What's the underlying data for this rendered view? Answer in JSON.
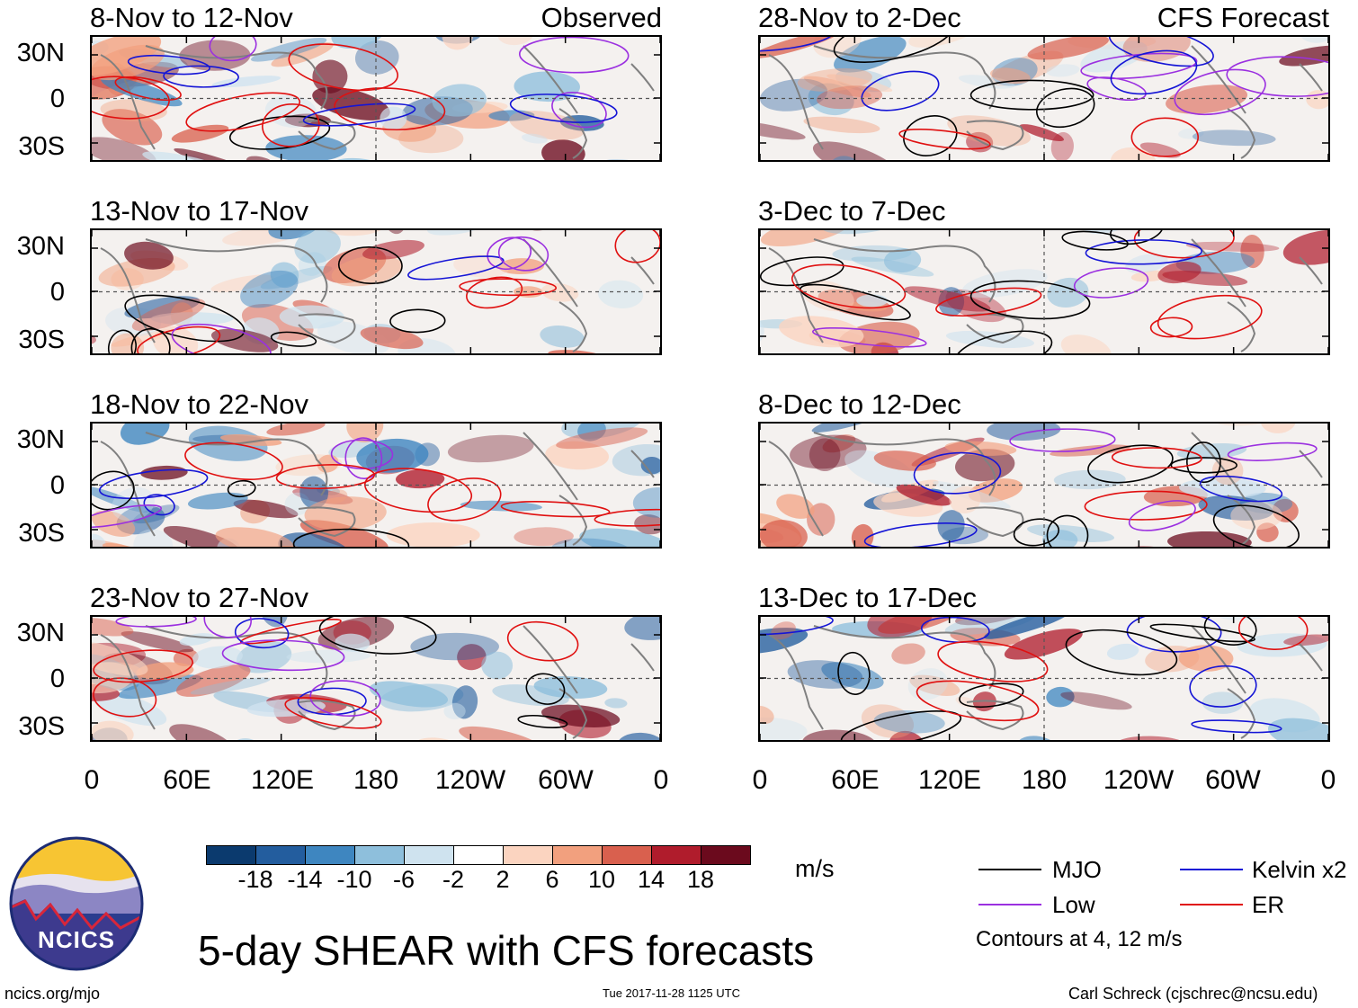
{
  "panels_left": {
    "header_right": "Observed",
    "titles": [
      "8-Nov to 12-Nov",
      "13-Nov to 17-Nov",
      "18-Nov to 22-Nov",
      "23-Nov to 27-Nov"
    ]
  },
  "panels_right": {
    "header_right": "CFS Forecast",
    "titles": [
      "28-Nov to 2-Dec",
      "3-Dec to 7-Dec",
      "8-Dec to 12-Dec",
      "13-Dec to 17-Dec"
    ]
  },
  "axes": {
    "lat_labels": [
      "30N",
      "0",
      "30S"
    ],
    "lon_labels": [
      "0",
      "60E",
      "120E",
      "180",
      "120W",
      "60W",
      "0"
    ]
  },
  "colorbar": {
    "unit": "m/s",
    "tick_labels": [
      "-18",
      "-14",
      "-10",
      "-6",
      "-2",
      "2",
      "6",
      "10",
      "14",
      "18"
    ],
    "colors": [
      "#0b3a6e",
      "#235d9e",
      "#3e86c0",
      "#8ebfdc",
      "#cfe3ef",
      "#ffffff",
      "#fbd4c0",
      "#f2a07e",
      "#d9604e",
      "#b01c2c",
      "#6b0a1d"
    ]
  },
  "legend": {
    "items": [
      {
        "label": "MJO",
        "color": "#000000"
      },
      {
        "label": "Kelvin x2",
        "color": "#1515d6"
      },
      {
        "label": "Low",
        "color": "#9b30e0"
      },
      {
        "label": "ER",
        "color": "#e01010"
      }
    ],
    "note": "Contours at 4, 12 m/s"
  },
  "main_title": "5-day SHEAR with CFS forecasts",
  "logo_text": "NCICS",
  "footer": {
    "url": "ncics.org/mjo",
    "timestamp": "Tue 2017-11-28 1125 UTC",
    "credit": "Carl Schreck (cjschrec@ncsu.edu)"
  }
}
